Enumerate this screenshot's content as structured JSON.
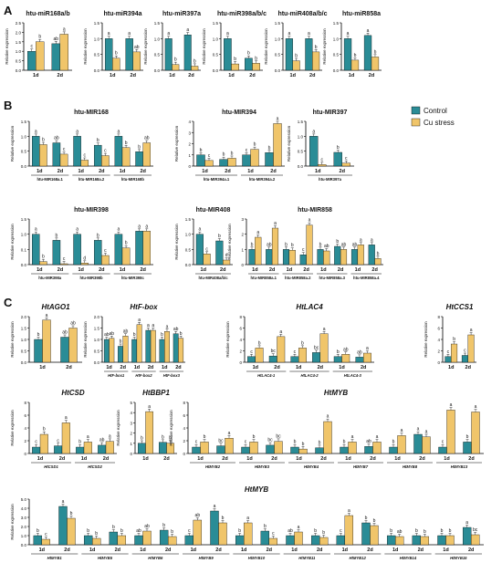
{
  "figure": {
    "section_labels": [
      "A",
      "B",
      "C"
    ],
    "legend": {
      "items": [
        {
          "label": "Control"
        },
        {
          "label": "Cu stress"
        }
      ]
    },
    "y_label": "Relative expression",
    "colors": {
      "control": "#2a8c96",
      "cu": "#f0c56a",
      "axis": "#000000",
      "text": "#111111"
    }
  },
  "chart_data": [
    {
      "id": "A1",
      "type": "bar",
      "title": "htu-miR168a/b",
      "ylabel": "Relative expression",
      "ylim": [
        0,
        2.5
      ],
      "yticks": [
        "0.0",
        "0.5",
        "1.0",
        "1.5",
        "2.0",
        "2.5"
      ],
      "categories": [
        "1d",
        "2d"
      ],
      "series": [
        {
          "name": "Control",
          "values": [
            1.0,
            1.4
          ]
        },
        {
          "name": "Cu stress",
          "values": [
            1.5,
            1.9
          ]
        }
      ],
      "letters": [
        [
          "c",
          "ab"
        ],
        [
          "b",
          "a"
        ]
      ]
    },
    {
      "id": "A2",
      "type": "bar",
      "title": "htu-miR394a",
      "ylabel": "Relative expression",
      "ylim": [
        0,
        1.5
      ],
      "yticks": [
        "0.0",
        "0.5",
        "1.0",
        "1.5"
      ],
      "categories": [
        "1d",
        "2d"
      ],
      "series": [
        {
          "name": "Control",
          "values": [
            1.0,
            1.0
          ]
        },
        {
          "name": "Cu stress",
          "values": [
            0.38,
            0.58
          ]
        }
      ],
      "letters": [
        [
          "a",
          "a"
        ],
        [
          "b",
          "ab"
        ]
      ]
    },
    {
      "id": "A3",
      "type": "bar",
      "title": "htu-miR397a",
      "ylabel": "Relative expression",
      "ylim": [
        0,
        1.5
      ],
      "yticks": [
        "0.0",
        "0.5",
        "1.0",
        "1.5"
      ],
      "categories": [
        "1d",
        "2d"
      ],
      "series": [
        {
          "name": "Control",
          "values": [
            1.0,
            1.12
          ]
        },
        {
          "name": "Cu stress",
          "values": [
            0.18,
            0.13
          ]
        }
      ],
      "letters": [
        [
          "a",
          "a"
        ],
        [
          "b",
          "b"
        ]
      ]
    },
    {
      "id": "A4",
      "type": "bar",
      "title": "htu-miR398a/b/c",
      "ylabel": "Relative expression",
      "ylim": [
        0,
        1.5
      ],
      "yticks": [
        "0.0",
        "0.5",
        "1.0",
        "1.5"
      ],
      "categories": [
        "1d",
        "2d"
      ],
      "series": [
        {
          "name": "Control",
          "values": [
            1.0,
            0.38
          ]
        },
        {
          "name": "Cu stress",
          "values": [
            0.2,
            0.22
          ]
        }
      ],
      "letters": [
        [
          "a",
          "b"
        ],
        [
          "b",
          "b"
        ]
      ]
    },
    {
      "id": "A5",
      "type": "bar",
      "title": "htu-miR408a/b/c",
      "ylabel": "Relative expression",
      "ylim": [
        0,
        1.5
      ],
      "yticks": [
        "0.0",
        "0.5",
        "1.0",
        "1.5"
      ],
      "categories": [
        "1d",
        "2d"
      ],
      "series": [
        {
          "name": "Control",
          "values": [
            1.0,
            1.0
          ]
        },
        {
          "name": "Cu stress",
          "values": [
            0.3,
            0.58
          ]
        }
      ],
      "letters": [
        [
          "a",
          "a"
        ],
        [
          "b",
          "b"
        ]
      ]
    },
    {
      "id": "A6",
      "type": "bar",
      "title": "htu-miR858a",
      "ylabel": "Relative expression",
      "ylim": [
        0,
        1.5
      ],
      "yticks": [
        "0.0",
        "0.5",
        "1.0",
        "1.5"
      ],
      "categories": [
        "1d",
        "2d"
      ],
      "series": [
        {
          "name": "Control",
          "values": [
            1.0,
            1.1
          ]
        },
        {
          "name": "Cu stress",
          "values": [
            0.32,
            0.42
          ]
        }
      ],
      "letters": [
        [
          "a",
          "a"
        ],
        [
          "b",
          "b"
        ]
      ]
    },
    {
      "id": "B1",
      "type": "bar",
      "title": "htu-MIR168",
      "ylabel": "Relative expression",
      "ylim": [
        0,
        1.5
      ],
      "yticks": [
        "0.0",
        "0.5",
        "1.0",
        "1.5"
      ],
      "categories": [
        "1d",
        "2d",
        "1d",
        "2d",
        "1d",
        "2d"
      ],
      "groups": [
        "htu-MIR168a.1",
        "htu-MIR168a.2",
        "htu-MIR168b"
      ],
      "series": [
        {
          "name": "Control",
          "values": [
            1.0,
            0.78,
            1.0,
            0.7,
            1.0,
            0.48
          ]
        },
        {
          "name": "Cu stress",
          "values": [
            0.72,
            0.4,
            0.2,
            0.35,
            0.62,
            0.78
          ]
        }
      ],
      "letters": [
        [
          "a",
          "ab",
          "a",
          "b",
          "a",
          "b"
        ],
        [
          "b",
          "c",
          "c",
          "c",
          "b",
          "ab"
        ]
      ]
    },
    {
      "id": "B2",
      "type": "bar",
      "title": "htu-MIR394",
      "ylabel": "Relative expression",
      "ylim": [
        0,
        4
      ],
      "yticks": [
        "0",
        "1",
        "2",
        "3",
        "4"
      ],
      "categories": [
        "1d",
        "2d",
        "1d",
        "2d"
      ],
      "groups": [
        "htu-MIR394a.1",
        "htu-MIR394a.2"
      ],
      "series": [
        {
          "name": "Control",
          "values": [
            1.0,
            0.6,
            1.0,
            1.2
          ]
        },
        {
          "name": "Cu stress",
          "values": [
            0.5,
            0.7,
            1.5,
            3.8
          ]
        }
      ],
      "letters": [
        [
          "b",
          "b",
          "c",
          "b"
        ],
        [
          "c",
          "b",
          "b",
          "a"
        ]
      ]
    },
    {
      "id": "B3",
      "type": "bar",
      "title": "htu-MIR397",
      "ylabel": "Relative expression",
      "ylim": [
        0,
        1.5
      ],
      "yticks": [
        "0.0",
        "0.5",
        "1.0",
        "1.5"
      ],
      "categories": [
        "1d",
        "2d"
      ],
      "groups": [
        "htu-MIR397a"
      ],
      "series": [
        {
          "name": "Control",
          "values": [
            1.0,
            0.46
          ]
        },
        {
          "name": "Cu stress",
          "values": [
            0.05,
            0.1
          ]
        }
      ],
      "letters": [
        [
          "a",
          "b"
        ],
        [
          "c",
          "c"
        ]
      ]
    },
    {
      "id": "B4",
      "type": "bar",
      "title": "htu-MIR398",
      "ylabel": "Relative expression",
      "ylim": [
        0,
        1.5
      ],
      "yticks": [
        "0.0",
        "0.1",
        "1.0",
        "1.5"
      ],
      "categories": [
        "1d",
        "2d",
        "1d",
        "2d",
        "1d",
        "2d"
      ],
      "groups": [
        "htu-MIR398a",
        "htu-MIR398b",
        "htu-MIR398c"
      ],
      "series": [
        {
          "name": "Control",
          "values": [
            1.0,
            0.8,
            1.0,
            0.8,
            1.0,
            1.1
          ]
        },
        {
          "name": "Cu stress",
          "values": [
            0.1,
            0.03,
            0.05,
            0.3,
            0.55,
            1.1
          ]
        }
      ],
      "letters": [
        [
          "a",
          "b",
          "a",
          "b",
          "a",
          "a"
        ],
        [
          "b",
          "c",
          "d",
          "c",
          "b",
          "a"
        ]
      ]
    },
    {
      "id": "B5",
      "type": "bar",
      "title": "htu-MIR408",
      "ylabel": "Relative expression",
      "ylim": [
        0,
        1.5
      ],
      "yticks": [
        "0.0",
        "0.5",
        "1.0",
        "1.5"
      ],
      "categories": [
        "1d",
        "2d"
      ],
      "groups": [
        "htu-MIR408a/b/c"
      ],
      "series": [
        {
          "name": "Control",
          "values": [
            1.0,
            0.78
          ]
        },
        {
          "name": "Cu stress",
          "values": [
            0.35,
            0.15
          ]
        }
      ],
      "letters": [
        [
          "a",
          "b"
        ],
        [
          "c",
          "d"
        ]
      ]
    },
    {
      "id": "B6",
      "type": "bar",
      "title": "htu-MIR858",
      "ylabel": "Relative expression",
      "ylim": [
        0,
        3
      ],
      "yticks": [
        "0",
        "1",
        "2",
        "3"
      ],
      "categories": [
        "1d",
        "2d",
        "1d",
        "2d",
        "1d",
        "2d",
        "1d",
        "2d"
      ],
      "groups": [
        "htu-MIR858a.1",
        "htu-MIR858a.2",
        "htu-MIR858a.3",
        "htu-MIR858a.4"
      ],
      "series": [
        {
          "name": "Control",
          "values": [
            1.0,
            1.0,
            1.0,
            0.65,
            1.0,
            1.2,
            1.0,
            1.3
          ]
        },
        {
          "name": "Cu stress",
          "values": [
            1.8,
            2.4,
            0.95,
            2.6,
            0.9,
            1.0,
            1.3,
            0.4
          ]
        }
      ],
      "letters": [
        [
          "b",
          "ab",
          "b",
          "c",
          "b",
          "b",
          "ab",
          "a"
        ],
        [
          "a",
          "a",
          "b",
          "a",
          "ab",
          "ab",
          "a",
          "b"
        ]
      ]
    },
    {
      "id": "C1",
      "type": "bar",
      "title": "HtAGO1",
      "ylabel": "Relative expression",
      "ylim": [
        0,
        2.0
      ],
      "yticks": [
        "0.0",
        "0.5",
        "1.0",
        "1.5",
        "2.0"
      ],
      "categories": [
        "1d",
        "2d"
      ],
      "series": [
        {
          "name": "Control",
          "values": [
            1.0,
            1.1
          ]
        },
        {
          "name": "Cu stress",
          "values": [
            1.85,
            1.5
          ]
        }
      ],
      "letters": [
        [
          "b",
          "ab"
        ],
        [
          "a",
          "ab"
        ]
      ]
    },
    {
      "id": "C2",
      "type": "bar",
      "title": "HtF-box",
      "ylabel": "Relative expression",
      "ylim": [
        0,
        2.0
      ],
      "yticks": [
        "0.0",
        "0.5",
        "1.0",
        "1.5",
        "2.0"
      ],
      "categories": [
        "1d",
        "2d",
        "1d",
        "2d",
        "1d",
        "2d"
      ],
      "groups": [
        "HtF-box1",
        "HtF-box2",
        "HtF-box3"
      ],
      "series": [
        {
          "name": "Control",
          "values": [
            1.0,
            0.7,
            1.0,
            1.4,
            1.0,
            1.25
          ]
        },
        {
          "name": "Cu stress",
          "values": [
            1.05,
            1.15,
            1.65,
            1.4,
            1.35,
            1.05
          ]
        }
      ],
      "letters": [
        [
          "ab",
          "b",
          "b",
          "a",
          "b",
          "ab"
        ],
        [
          "ab",
          "ab",
          "a",
          "a",
          "a",
          "b"
        ]
      ]
    },
    {
      "id": "C3",
      "type": "bar",
      "title": "HtLAC4",
      "ylabel": "Relative expression",
      "ylim": [
        0,
        8
      ],
      "yticks": [
        "0",
        "2",
        "4",
        "6",
        "8"
      ],
      "categories": [
        "1d",
        "2d",
        "1d",
        "2d",
        "1d",
        "2d"
      ],
      "groups": [
        "HtLAC4-1",
        "HtLAC4-2",
        "HtLAC4-3"
      ],
      "series": [
        {
          "name": "Control",
          "values": [
            1.0,
            1.1,
            1.0,
            1.7,
            1.0,
            0.9
          ]
        },
        {
          "name": "Cu stress",
          "values": [
            2.5,
            4.5,
            2.5,
            5.0,
            1.4,
            1.6
          ]
        }
      ],
      "letters": [
        [
          "c",
          "bc",
          "c",
          "bc",
          "b",
          "ab"
        ],
        [
          "b",
          "a",
          "b",
          "a",
          "ab",
          "a"
        ]
      ]
    },
    {
      "id": "C4",
      "type": "bar",
      "title": "HtCCS1",
      "ylabel": "Relative expression",
      "ylim": [
        0,
        8
      ],
      "yticks": [
        "0",
        "2",
        "4",
        "6",
        "8"
      ],
      "categories": [
        "1d",
        "2d"
      ],
      "series": [
        {
          "name": "Control",
          "values": [
            1.0,
            1.2
          ]
        },
        {
          "name": "Cu stress",
          "values": [
            3.2,
            4.8
          ]
        }
      ],
      "letters": [
        [
          "c",
          "c"
        ],
        [
          "b",
          "a"
        ]
      ]
    },
    {
      "id": "C5",
      "type": "bar",
      "title": "HtCSD",
      "ylabel": "Relative expression",
      "ylim": [
        0,
        8
      ],
      "yticks": [
        "0",
        "2",
        "4",
        "6",
        "8"
      ],
      "categories": [
        "1d",
        "2d",
        "1d",
        "2d"
      ],
      "groups": [
        "HtCSD1",
        "HtCSD2"
      ],
      "series": [
        {
          "name": "Control",
          "values": [
            1.0,
            1.2,
            1.0,
            1.3
          ]
        },
        {
          "name": "Cu stress",
          "values": [
            3.0,
            4.8,
            1.8,
            1.9
          ]
        }
      ],
      "letters": [
        [
          "c",
          "c",
          "b",
          "ab"
        ],
        [
          "b",
          "a",
          "a",
          "a"
        ]
      ]
    },
    {
      "id": "C6",
      "type": "bar",
      "title": "HtBBP1",
      "ylabel": "Relative expression",
      "ylim": [
        0,
        5
      ],
      "yticks": [
        "0",
        "1",
        "2",
        "3",
        "4",
        "5"
      ],
      "categories": [
        "1d",
        "2d"
      ],
      "series": [
        {
          "name": "Control",
          "values": [
            1.0,
            1.1
          ]
        },
        {
          "name": "Cu stress",
          "values": [
            4.1,
            1.0
          ]
        }
      ],
      "letters": [
        [
          "b",
          "b"
        ],
        [
          "a",
          "b"
        ]
      ]
    },
    {
      "id": "C7",
      "type": "bar",
      "title": "HtMYB",
      "ylabel": "Relative expression",
      "ylim": [
        0,
        8
      ],
      "yticks": [
        "0",
        "2",
        "4",
        "6",
        "8"
      ],
      "categories": [
        "1d",
        "2d",
        "1d",
        "2d",
        "1d",
        "2d",
        "1d",
        "2d",
        "1d",
        "2d",
        "1d",
        "2d"
      ],
      "groups": [
        "HtMYB2",
        "HtMYB3",
        "HtMYB4",
        "HtMYB7",
        "HtMYB8",
        "HtMYB13"
      ],
      "series": [
        {
          "name": "Control",
          "values": [
            1.0,
            1.2,
            1.0,
            1.3,
            1.0,
            0.9,
            1.0,
            1.1,
            1.0,
            3.0,
            1.0,
            1.8
          ]
        },
        {
          "name": "Cu stress",
          "values": [
            1.8,
            2.4,
            1.8,
            1.9,
            0.7,
            5.0,
            1.8,
            1.8,
            2.8,
            2.6,
            6.8,
            6.5
          ]
        }
      ],
      "letters": [
        [
          "c",
          "bc",
          "c",
          "bc",
          "b",
          "b",
          "b",
          "ab",
          "b",
          "a",
          "c",
          "b"
        ],
        [
          "b",
          "a",
          "b",
          "bc",
          "b",
          "a",
          "a",
          "a",
          "a",
          "a",
          "a",
          "a"
        ]
      ]
    },
    {
      "id": "C8",
      "type": "bar",
      "title": "HtMYB",
      "ylabel": "Relative expression",
      "ylim": [
        0,
        5
      ],
      "yticks": [
        "0.0",
        "1.0",
        "2.0",
        "3.0",
        "4.0",
        "5.0"
      ],
      "categories": [
        "1d",
        "2d",
        "1d",
        "2d",
        "1d",
        "2d",
        "1d",
        "2d",
        "1d",
        "2d",
        "1d",
        "2d",
        "1d",
        "2d",
        "1d",
        "2d",
        "1d",
        "2d"
      ],
      "groups": [
        "HtMYB1",
        "HtMYB5",
        "HtMYB6",
        "HtMYB9",
        "HtMYB10",
        "HtMYB11",
        "HtMYB12",
        "HtMYB14",
        "HtMYB15"
      ],
      "series": [
        {
          "name": "Control",
          "values": [
            1.0,
            4.2,
            1.0,
            1.4,
            1.0,
            1.6,
            1.0,
            3.7,
            1.0,
            1.5,
            1.0,
            1.0,
            1.0,
            2.4,
            1.0,
            1.0,
            1.0,
            1.9
          ]
        },
        {
          "name": "Cu stress",
          "values": [
            0.6,
            2.9,
            0.7,
            1.0,
            1.5,
            0.9,
            2.7,
            2.4,
            2.4,
            0.7,
            1.4,
            0.8,
            3.2,
            2.1,
            0.9,
            0.9,
            1.0,
            1.1
          ]
        }
      ],
      "letters": [
        [
          "b",
          "a",
          "b",
          "b",
          "ab",
          "b",
          "c",
          "a",
          "b",
          "b",
          "ab",
          "b",
          "c",
          "b",
          "b",
          "b",
          "b",
          "a"
        ],
        [
          "c",
          "b",
          "b",
          "b",
          "ab",
          "b",
          "ab",
          "b",
          "a",
          "c",
          "a",
          "b",
          "a",
          "b",
          "ab",
          "b",
          "b",
          "bc"
        ]
      ]
    }
  ]
}
